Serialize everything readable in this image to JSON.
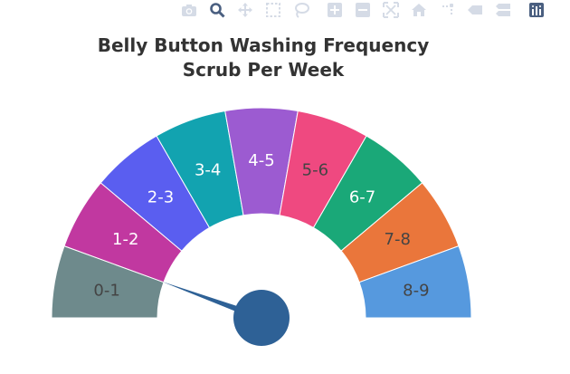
{
  "modebar": {
    "buttons": [
      {
        "icon": "camera-icon"
      },
      {
        "icon": "zoom-icon"
      },
      {
        "icon": "pan-icon"
      },
      {
        "icon": "box-select-icon"
      },
      {
        "icon": "lasso-select-icon"
      },
      {
        "icon": "zoom-in-icon"
      },
      {
        "icon": "zoom-out-icon"
      },
      {
        "icon": "autoscale-icon"
      },
      {
        "icon": "reset-axes-icon"
      },
      {
        "icon": "spike-lines-icon"
      },
      {
        "icon": "hover-closest-icon"
      },
      {
        "icon": "hover-compare-icon"
      },
      {
        "icon": "plotly-logo-icon"
      }
    ],
    "color": "#d5dbe6",
    "active_color": "#4a5f80"
  },
  "chart_data": {
    "type": "gauge",
    "title_line1": "Belly Button Washing Frequency",
    "title_line2": "Scrub Per Week",
    "range": [
      0,
      9
    ],
    "segments": [
      {
        "label": "0-1",
        "color": "#6e8a8c",
        "text_color": "#444444"
      },
      {
        "label": "1-2",
        "color": "#c138a0",
        "text_color": "#ffffff"
      },
      {
        "label": "2-3",
        "color": "#5a5ef0",
        "text_color": "#ffffff"
      },
      {
        "label": "3-4",
        "color": "#12a3b0",
        "text_color": "#ffffff"
      },
      {
        "label": "4-5",
        "color": "#9c5bd1",
        "text_color": "#ffffff"
      },
      {
        "label": "5-6",
        "color": "#ef4980",
        "text_color": "#444444"
      },
      {
        "label": "6-7",
        "color": "#1aa878",
        "text_color": "#ffffff"
      },
      {
        "label": "7-8",
        "color": "#ea763b",
        "text_color": "#444444"
      },
      {
        "label": "8-9",
        "color": "#5699de",
        "text_color": "#444444"
      }
    ],
    "value": 1.0,
    "needle_color": "#2e6196"
  }
}
